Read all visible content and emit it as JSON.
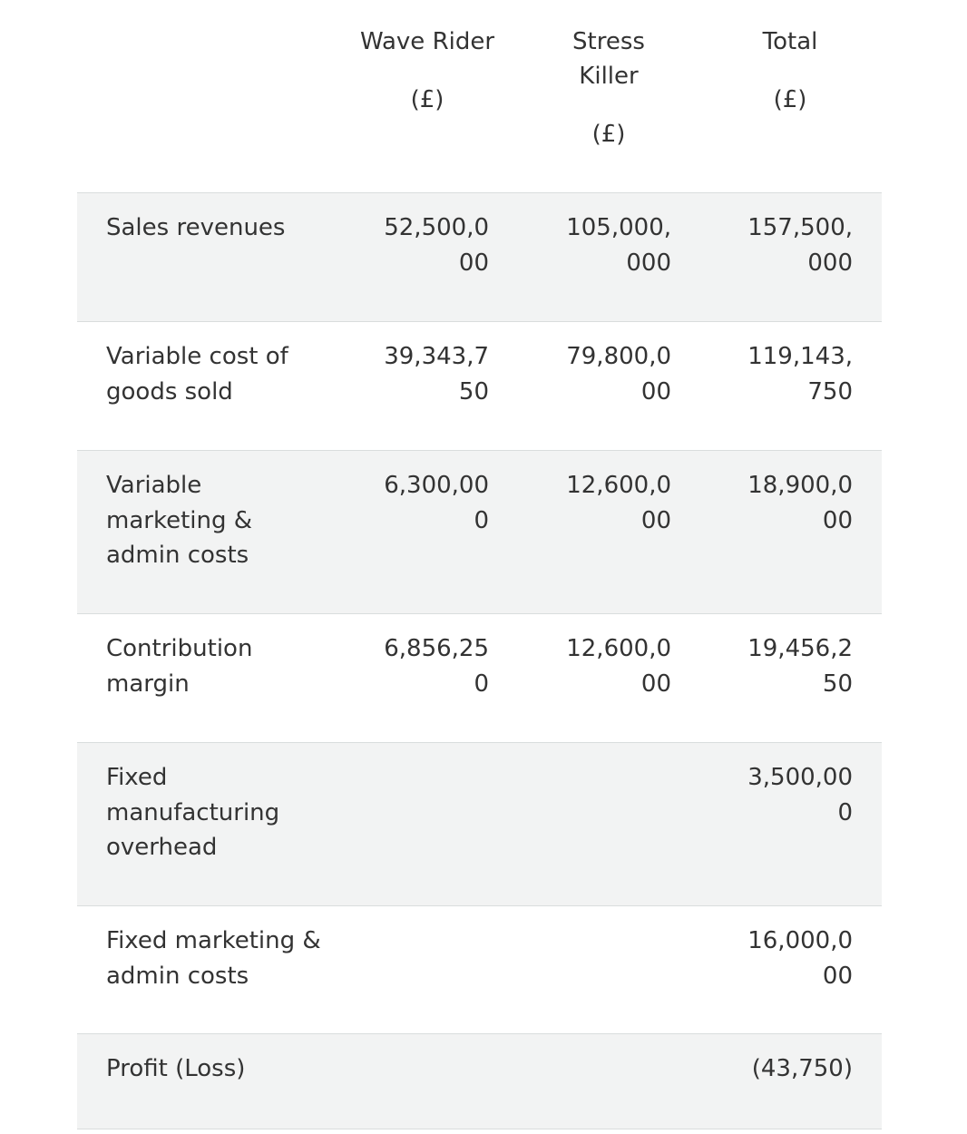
{
  "header": {
    "col_wave": "Wave Rider",
    "col_wave_unit": "(£)",
    "col_stress_line1": "Stress",
    "col_stress_line2": "Killer",
    "col_stress_unit": "(£)",
    "col_total": "Total",
    "col_total_unit": "(£)"
  },
  "rows": [
    {
      "label": "Sales revenues",
      "wave_rider": "52,500,000",
      "stress_killer": "105,000,000",
      "total": "157,500,000"
    },
    {
      "label": "Variable cost of goods sold",
      "wave_rider": "39,343,750",
      "stress_killer": "79,800,000",
      "total": "119,143,750"
    },
    {
      "label": "Variable marketing & admin costs",
      "wave_rider": "6,300,000",
      "stress_killer": "12,600,000",
      "total": "18,900,000"
    },
    {
      "label": "Contribution margin",
      "wave_rider": "6,856,250",
      "stress_killer": "12,600,000",
      "total": "19,456,250"
    },
    {
      "label": "Fixed manufacturing overhead",
      "wave_rider": "",
      "stress_killer": "",
      "total": "3,500,000"
    },
    {
      "label": "Fixed marketing & admin costs",
      "wave_rider": "",
      "stress_killer": "",
      "total": "16,000,000"
    },
    {
      "label": "Profit (Loss)",
      "wave_rider": "",
      "stress_killer": "",
      "total": "(43,750)"
    }
  ]
}
